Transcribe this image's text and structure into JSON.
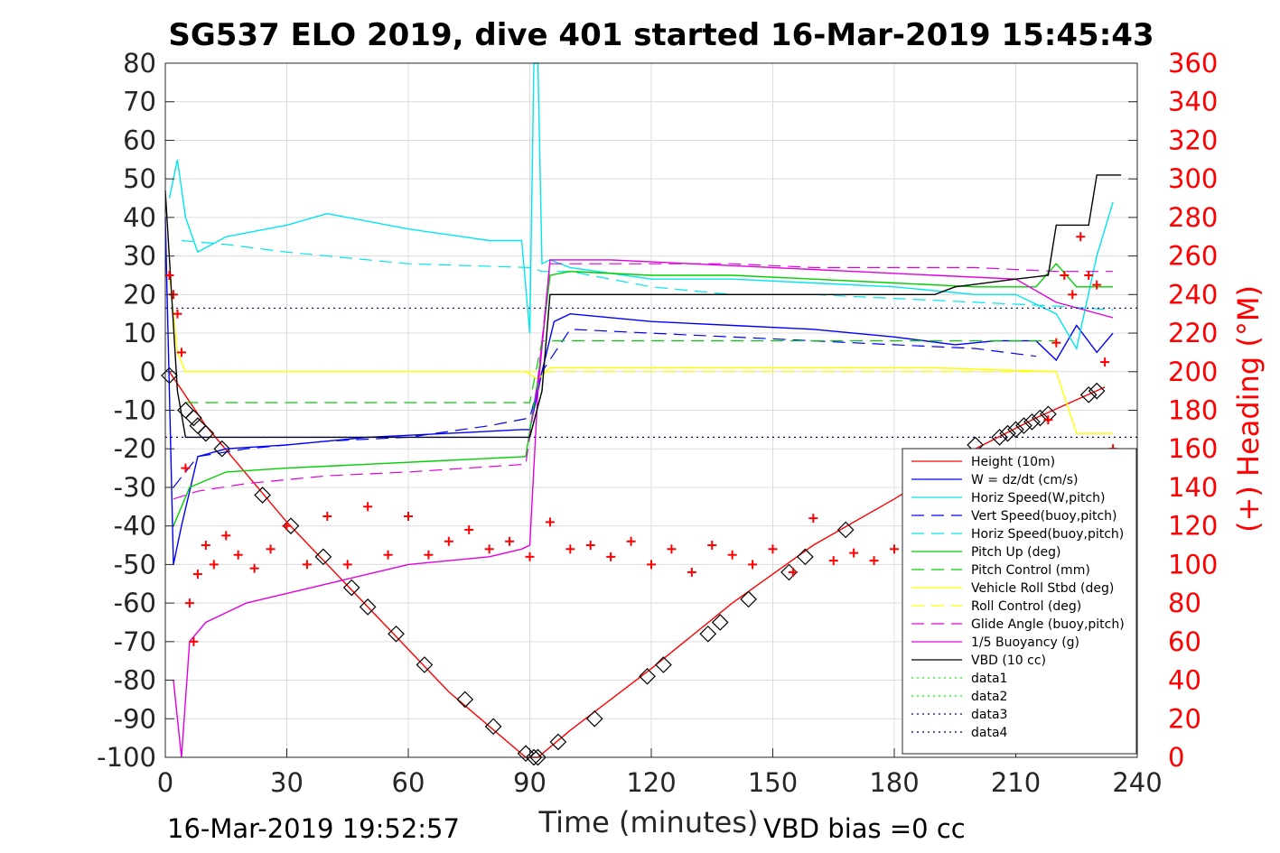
{
  "chart_data": {
    "type": "line",
    "title": "SG537 ELO 2019, dive 401 started 16-Mar-2019 15:45:43",
    "xlabel": "Time (minutes)",
    "ylabel_right": "(+) Heading (°M)",
    "xlim": [
      0,
      240
    ],
    "ylim": [
      -100,
      80
    ],
    "ylim_right": [
      0,
      360
    ],
    "x_ticks": [
      0,
      30,
      60,
      90,
      120,
      150,
      180,
      210,
      240
    ],
    "y_ticks": [
      -100,
      -90,
      -80,
      -70,
      -60,
      -50,
      -40,
      -30,
      -20,
      -10,
      0,
      10,
      20,
      30,
      40,
      50,
      60,
      70,
      80
    ],
    "y_right_ticks": [
      0,
      20,
      40,
      60,
      80,
      100,
      120,
      140,
      160,
      180,
      200,
      220,
      240,
      260,
      280,
      300,
      320,
      340,
      360
    ],
    "grid": true,
    "legend_position": "bottom-right",
    "footer_left": "16-Mar-2019 19:52:57",
    "footer_right": "VBD bias =0 cc",
    "series": [
      {
        "name": "Height (10m)",
        "color": "#ff0000",
        "style": "solid",
        "x": [
          1,
          10,
          30,
          50,
          70,
          89,
          92,
          100,
          120,
          140,
          160,
          180,
          200,
          215,
          232
        ],
        "y": [
          0,
          -14,
          -39,
          -61,
          -83,
          -100,
          -100,
          -93,
          -77,
          -60,
          -45,
          -33,
          -20,
          -12,
          -4
        ]
      },
      {
        "name": "W = dz/dt (cm/s)",
        "color": "#0000ff",
        "style": "solid",
        "x": [
          0,
          2,
          4,
          8,
          15,
          30,
          50,
          70,
          88,
          90,
          93,
          96,
          100,
          120,
          140,
          160,
          180,
          195,
          205,
          215,
          220,
          225,
          230,
          234
        ],
        "y": [
          40,
          -50,
          -40,
          -22,
          -20,
          -19,
          -17,
          -16,
          -15,
          -15,
          0,
          13,
          15,
          13,
          12,
          11,
          9,
          7,
          8,
          8,
          3,
          12,
          5,
          10
        ]
      },
      {
        "name": "Horiz Speed(W,pitch)",
        "color": "#00e5ee",
        "style": "solid",
        "x": [
          1,
          3,
          5,
          8,
          15,
          30,
          40,
          60,
          80,
          88,
          90,
          91,
          92,
          93,
          95,
          100,
          120,
          140,
          160,
          180,
          200,
          210,
          220,
          225,
          230,
          234
        ],
        "y": [
          45,
          55,
          40,
          31,
          35,
          38,
          41,
          37,
          34,
          34,
          10,
          80,
          80,
          28,
          29,
          27,
          24,
          24,
          23,
          22,
          20,
          20,
          15,
          6,
          30,
          44
        ]
      },
      {
        "name": "Vert Speed(buoy,pitch)",
        "color": "#0000ff",
        "style": "dashed",
        "x": [
          2,
          8,
          20,
          40,
          60,
          80,
          90,
          93,
          100,
          120,
          140,
          160,
          180,
          200,
          215
        ],
        "y": [
          -30,
          -22,
          -20,
          -18,
          -17,
          -14,
          -12,
          0,
          11,
          10,
          9,
          8,
          7,
          6,
          4
        ]
      },
      {
        "name": "Horiz Speed(buoy,pitch)",
        "color": "#00e5ee",
        "style": "dashed",
        "x": [
          4,
          15,
          30,
          60,
          90,
          93,
          100,
          120,
          140,
          160,
          180,
          200,
          220,
          234
        ],
        "y": [
          34,
          33,
          31,
          28,
          27,
          26,
          26,
          22,
          20,
          20,
          19,
          18,
          17,
          16
        ]
      },
      {
        "name": "Pitch Up (deg)",
        "color": "#00d000",
        "style": "solid",
        "x": [
          2,
          6,
          15,
          30,
          50,
          70,
          89,
          92,
          95,
          100,
          120,
          140,
          160,
          180,
          200,
          215,
          220,
          225,
          234
        ],
        "y": [
          -40,
          -30,
          -26,
          -25,
          -24,
          -23,
          -22,
          -2,
          25,
          26,
          25,
          25,
          24,
          23,
          22,
          22,
          28,
          22,
          22
        ]
      },
      {
        "name": "Pitch Control (mm)",
        "color": "#00d000",
        "style": "dashed",
        "x": [
          5,
          90,
          93,
          220
        ],
        "y": [
          -8,
          -8,
          8,
          8
        ]
      },
      {
        "name": "Vehicle Roll Stbd (deg)",
        "color": "#ffff00",
        "style": "solid",
        "x": [
          1,
          3,
          5,
          10,
          30,
          60,
          89,
          92,
          95,
          100,
          130,
          160,
          190,
          220,
          225,
          230,
          234
        ],
        "y": [
          25,
          5,
          0,
          0,
          0,
          0,
          0,
          -2,
          1,
          1,
          1,
          1,
          1,
          0,
          -16,
          -16,
          -16
        ]
      },
      {
        "name": "Roll Control (deg)",
        "color": "#ffff00",
        "style": "dashed",
        "x": [
          5,
          90,
          93,
          220
        ],
        "y": [
          0,
          0,
          0,
          0
        ]
      },
      {
        "name": "Glide Angle (buoy,pitch)",
        "color": "#e000e0",
        "style": "dashed",
        "x": [
          2,
          8,
          20,
          40,
          60,
          89,
          92,
          95,
          100,
          120,
          140,
          160,
          180,
          200,
          220,
          234
        ],
        "y": [
          -33,
          -31,
          -29,
          -27,
          -26,
          -24,
          -2,
          28,
          28,
          28,
          28,
          27,
          27,
          27,
          26,
          26
        ]
      },
      {
        "name": "1/5 Buoyancy (g)",
        "color": "#e000e0",
        "style": "solid",
        "x": [
          2,
          4,
          6,
          10,
          20,
          40,
          60,
          80,
          88,
          90,
          92,
          95,
          110,
          130,
          150,
          170,
          190,
          210,
          220,
          234
        ],
        "y": [
          -80,
          -100,
          -70,
          -65,
          -60,
          -55,
          -50,
          -48,
          -46,
          -45,
          -5,
          29,
          29,
          28,
          27,
          26,
          25,
          24,
          18,
          14
        ]
      },
      {
        "name": "VBD (10 cc)",
        "color": "#000000",
        "style": "solid",
        "x": [
          0,
          3,
          5,
          90,
          93,
          95,
          100,
          140,
          190,
          195,
          210,
          218,
          220,
          228,
          230,
          236
        ],
        "y": [
          47,
          -5,
          -17,
          -17,
          -5,
          20,
          20,
          20,
          20,
          22,
          24,
          25,
          38,
          38,
          51,
          51
        ]
      },
      {
        "name": "data1",
        "color": "#00ff00",
        "style": "dotted",
        "x": [],
        "y": []
      },
      {
        "name": "data2",
        "color": "#00ff00",
        "style": "dotted",
        "x": [],
        "y": []
      },
      {
        "name": "data3",
        "color": "#000080",
        "style": "dotted",
        "x": [
          0,
          240
        ],
        "y": [
          16.5,
          16.5
        ]
      },
      {
        "name": "data4",
        "color": "#000080",
        "style": "dotted",
        "x": [
          0,
          240
        ],
        "y": [
          -17,
          -17
        ]
      }
    ],
    "heading_series": {
      "axis": "right",
      "color": "#ff0000",
      "marker": "+",
      "x": [
        1,
        2,
        3,
        4,
        5,
        6,
        7,
        8,
        10,
        12,
        15,
        18,
        22,
        26,
        30,
        35,
        40,
        45,
        50,
        55,
        60,
        65,
        70,
        75,
        80,
        85,
        90,
        95,
        100,
        105,
        110,
        115,
        120,
        125,
        130,
        135,
        140,
        145,
        150,
        155,
        160,
        165,
        170,
        175,
        180,
        185,
        190,
        195,
        200,
        205,
        210,
        214,
        216,
        218,
        220,
        222,
        224,
        226,
        228,
        230,
        232,
        234
      ],
      "y": [
        250,
        240,
        230,
        210,
        150,
        80,
        60,
        95,
        110,
        100,
        115,
        105,
        98,
        108,
        120,
        100,
        125,
        100,
        130,
        105,
        125,
        105,
        112,
        118,
        108,
        112,
        104,
        122,
        108,
        110,
        104,
        112,
        100,
        108,
        96,
        110,
        105,
        100,
        108,
        96,
        124,
        102,
        106,
        102,
        108,
        100,
        112,
        118,
        110,
        122,
        132,
        140,
        150,
        175,
        215,
        250,
        240,
        270,
        250,
        245,
        205,
        160
      ]
    },
    "square_markers": {
      "color": "#000000",
      "x": [
        1,
        5,
        7,
        8,
        10,
        14,
        24,
        31,
        39,
        46,
        50,
        57,
        64,
        74,
        81,
        89,
        91,
        92,
        97,
        106,
        119,
        123,
        134,
        137,
        144,
        154,
        158,
        168,
        200,
        206,
        208,
        210,
        212,
        214,
        216,
        218,
        228,
        230
      ],
      "y": [
        -1,
        -10,
        -12,
        -14,
        -16,
        -20,
        -32,
        -40,
        -48,
        -56,
        -61,
        -68,
        -76,
        -85,
        -92,
        -99,
        -100,
        -100,
        -96,
        -90,
        -79,
        -76,
        -68,
        -65,
        -59,
        -52,
        -48,
        -41,
        -19,
        -17,
        -16,
        -15,
        -14,
        -13,
        -12,
        -11,
        -6,
        -5
      ]
    }
  }
}
